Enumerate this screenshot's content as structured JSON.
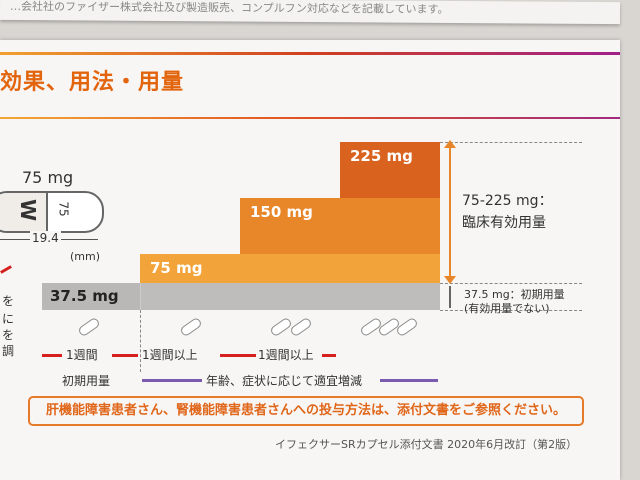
{
  "top_fragment": "…会社社のファイザー株式会社及び製造販売、コンプルフン対応などを記載しています。",
  "section_title": "効果、用法・用量",
  "capsule": {
    "dose_label": "75 mg",
    "mark_w": "W",
    "mark_75": "75",
    "length": "19.4",
    "unit": "(mm)"
  },
  "left_edge_chars": [
    "を",
    "に",
    "を",
    "調"
  ],
  "bars": {
    "b375": "37.5 mg",
    "b75": "75 mg",
    "b150": "150 mg",
    "b225": "225 mg"
  },
  "right_labels": {
    "range": "75-225 mg：",
    "range_note": "臨床有効用量",
    "initial": "37.5 mg：初期用量",
    "initial_note": "(有効用量でない)"
  },
  "periods": {
    "p1": "1週間",
    "p2": "1週間以上",
    "p3": "1週間以上",
    "initial_dose": "初期用量",
    "adjust": "年齢、症状に応じて適宜増減"
  },
  "notice": "肝機能障害患者さん、腎機能障害患者さんへの投与方法は、添付文書をご参照ください。",
  "footer": "イフェクサーSRカプセル添付文書 2020年6月改訂（第2版）",
  "colors": {
    "orange": "#e2640c",
    "bar_light": "#f2a43a",
    "bar_mid": "#e8862a",
    "bar_dark": "#d9621e",
    "gray": "#b9b8b6",
    "red": "#d6201e",
    "purple": "#7a5bb0"
  }
}
